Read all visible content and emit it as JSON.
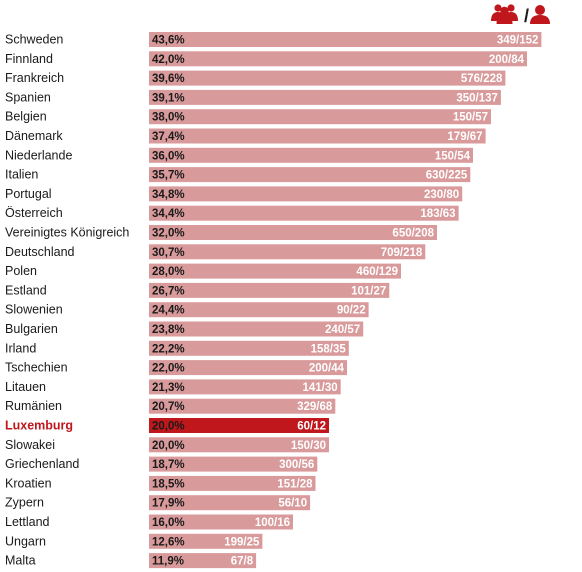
{
  "chart_data": {
    "type": "bar",
    "orientation": "horizontal",
    "title": "",
    "legend_icons": [
      "group-icon",
      "person-icon"
    ],
    "legend_separator": "/",
    "colors": {
      "bar": "#d99a9b",
      "highlight": "#c0171c",
      "text": "#1a1a1a",
      "highlight_text": "#c0171c"
    },
    "highlight": "Luxemburg",
    "rows": [
      {
        "label": "Schweden",
        "value": 43.6,
        "pct": "43,6%",
        "ratio": "349/152"
      },
      {
        "label": "Finnland",
        "value": 42.0,
        "pct": "42,0%",
        "ratio": "200/84"
      },
      {
        "label": "Frankreich",
        "value": 39.6,
        "pct": "39,6%",
        "ratio": "576/228"
      },
      {
        "label": "Spanien",
        "value": 39.1,
        "pct": "39,1%",
        "ratio": "350/137"
      },
      {
        "label": "Belgien",
        "value": 38.0,
        "pct": "38,0%",
        "ratio": "150/57"
      },
      {
        "label": "Dänemark",
        "value": 37.4,
        "pct": "37,4%",
        "ratio": "179/67"
      },
      {
        "label": "Niederlande",
        "value": 36.0,
        "pct": "36,0%",
        "ratio": "150/54"
      },
      {
        "label": "Italien",
        "value": 35.7,
        "pct": "35,7%",
        "ratio": "630/225"
      },
      {
        "label": "Portugal",
        "value": 34.8,
        "pct": "34,8%",
        "ratio": "230/80"
      },
      {
        "label": "Österreich",
        "value": 34.4,
        "pct": "34,4%",
        "ratio": "183/63"
      },
      {
        "label": "Vereinigtes Königreich",
        "value": 32.0,
        "pct": "32,0%",
        "ratio": "650/208"
      },
      {
        "label": "Deutschland",
        "value": 30.7,
        "pct": "30,7%",
        "ratio": "709/218"
      },
      {
        "label": "Polen",
        "value": 28.0,
        "pct": "28,0%",
        "ratio": "460/129"
      },
      {
        "label": "Estland",
        "value": 26.7,
        "pct": "26,7%",
        "ratio": "101/27"
      },
      {
        "label": "Slowenien",
        "value": 24.4,
        "pct": "24,4%",
        "ratio": "90/22"
      },
      {
        "label": "Bulgarien",
        "value": 23.8,
        "pct": "23,8%",
        "ratio": "240/57"
      },
      {
        "label": "Irland",
        "value": 22.2,
        "pct": "22,2%",
        "ratio": "158/35"
      },
      {
        "label": "Tschechien",
        "value": 22.0,
        "pct": "22,0%",
        "ratio": "200/44"
      },
      {
        "label": "Litauen",
        "value": 21.3,
        "pct": "21,3%",
        "ratio": "141/30"
      },
      {
        "label": "Rumänien",
        "value": 20.7,
        "pct": "20,7%",
        "ratio": "329/68"
      },
      {
        "label": "Luxemburg",
        "value": 20.0,
        "pct": "20,0%",
        "ratio": "60/12"
      },
      {
        "label": "Slowakei",
        "value": 20.0,
        "pct": "20,0%",
        "ratio": "150/30"
      },
      {
        "label": "Griechenland",
        "value": 18.7,
        "pct": "18,7%",
        "ratio": "300/56"
      },
      {
        "label": "Kroatien",
        "value": 18.5,
        "pct": "18,5%",
        "ratio": "151/28"
      },
      {
        "label": "Zypern",
        "value": 17.9,
        "pct": "17,9%",
        "ratio": "56/10"
      },
      {
        "label": "Lettland",
        "value": 16.0,
        "pct": "16,0%",
        "ratio": "100/16"
      },
      {
        "label": "Ungarn",
        "value": 12.6,
        "pct": "12,6%",
        "ratio": "199/25"
      },
      {
        "label": "Malta",
        "value": 11.9,
        "pct": "11,9%",
        "ratio": "67/8"
      }
    ]
  }
}
